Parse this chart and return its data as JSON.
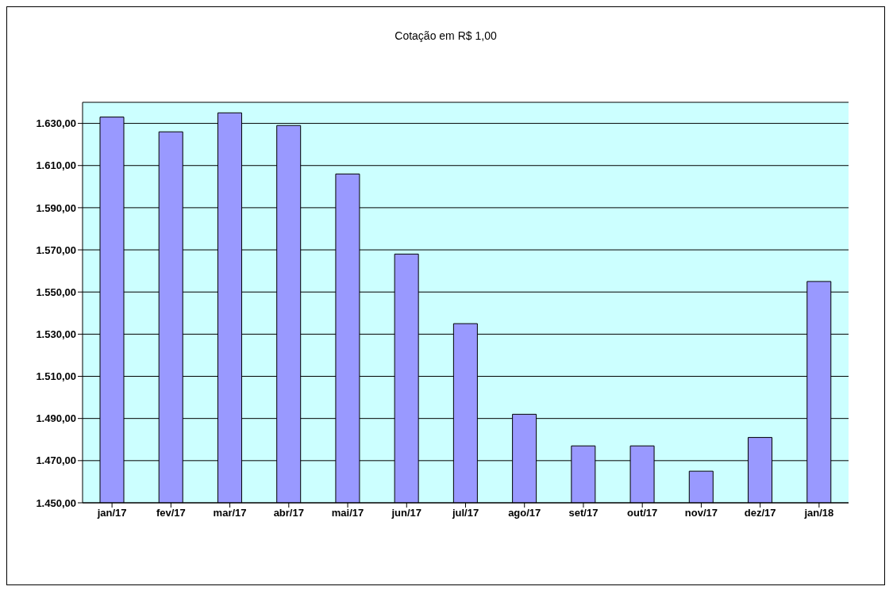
{
  "chart_data": {
    "type": "bar",
    "title": "Cotação em R$ 1,00",
    "categories": [
      "jan/17",
      "fev/17",
      "mar/17",
      "abr/17",
      "mai/17",
      "jun/17",
      "jul/17",
      "ago/17",
      "set/17",
      "out/17",
      "nov/17",
      "dez/17",
      "jan/18"
    ],
    "values": [
      1633,
      1626,
      1635,
      1629,
      1606,
      1568,
      1535,
      1492,
      1477,
      1477,
      1465,
      1481,
      1555
    ],
    "color": "#9999ff",
    "ylim": [
      1450,
      1640
    ],
    "yticks": [
      {
        "value": 1450,
        "label": "1.450,00"
      },
      {
        "value": 1470,
        "label": "1.470,00"
      },
      {
        "value": 1490,
        "label": "1.490,00"
      },
      {
        "value": 1510,
        "label": "1.510,00"
      },
      {
        "value": 1530,
        "label": "1.530,00"
      },
      {
        "value": 1550,
        "label": "1.550,00"
      },
      {
        "value": 1570,
        "label": "1.570,00"
      },
      {
        "value": 1590,
        "label": "1.590,00"
      },
      {
        "value": 1610,
        "label": "1.610,00"
      },
      {
        "value": 1630,
        "label": "1.630,00"
      }
    ],
    "grid": "y"
  }
}
